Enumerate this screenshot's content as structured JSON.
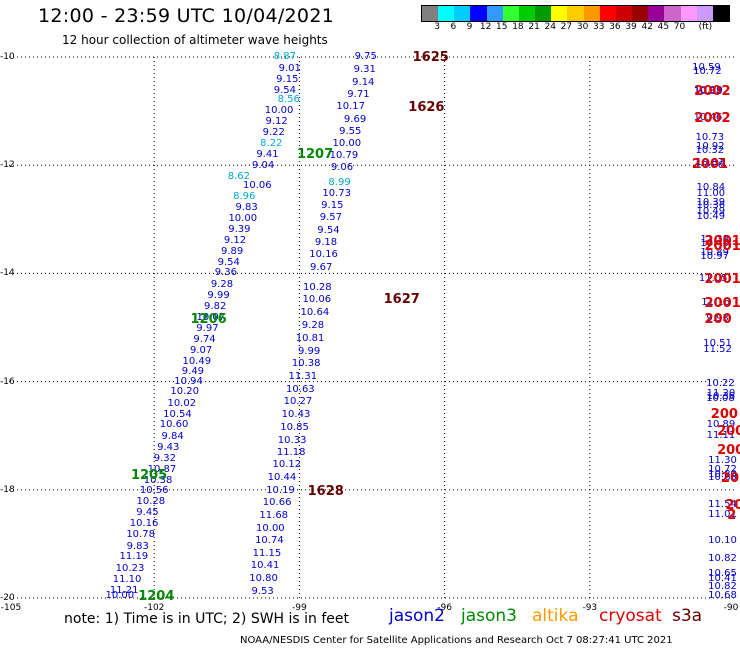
{
  "title": "12:00 - 23:59 UTC 10/04/2021",
  "subtitle": "12 hour collection of altimeter wave heights",
  "colorbar": {
    "colors": [
      "#808080",
      "#00ffff",
      "#00ccff",
      "#0000ff",
      "#3399ff",
      "#33ff33",
      "#00cc00",
      "#009900",
      "#ffff00",
      "#ffcc00",
      "#ff9900",
      "#ff0000",
      "#cc0000",
      "#990000",
      "#990099",
      "#cc66cc",
      "#ff99ff",
      "#cc99ff",
      "#000000"
    ],
    "labels": [
      "3",
      "6",
      "9",
      "12",
      "15",
      "18",
      "21",
      "24",
      "27",
      "30",
      "33",
      "36",
      "39",
      "42",
      "45",
      "70",
      "(ft)"
    ]
  },
  "axes": {
    "lon_ticks": [
      "-105",
      "-102",
      "-99",
      "-96",
      "-93",
      "-90"
    ],
    "lat_ticks": [
      "-10",
      "-12",
      "-14",
      "-16",
      "-18",
      "-20"
    ]
  },
  "note": "note: 1) Time is in UTC; 2) SWH is in feet",
  "satellites": [
    {
      "name": "jason2",
      "color": "#0000cc"
    },
    {
      "name": "jason3",
      "color": "#008800"
    },
    {
      "name": "altika",
      "color": "#ff9900"
    },
    {
      "name": "cryosat",
      "color": "#dd0000"
    },
    {
      "name": "s3a",
      "color": "#660000"
    }
  ],
  "credit": "NOAA/NESDIS Center for Satellite Applications and Research   Oct  7 08:27:41 UTC 2021",
  "pass_labels": [
    {
      "text": "1625",
      "color": "#660000",
      "lon": -96.66,
      "lat": -10.0
    },
    {
      "text": "1626",
      "color": "#660000",
      "lon": -96.75,
      "lat": -10.93
    },
    {
      "text": "1627",
      "color": "#660000",
      "lon": -97.26,
      "lat": -14.48
    },
    {
      "text": "1628",
      "color": "#660000",
      "lon": -98.83,
      "lat": -18.02
    },
    {
      "text": "1207",
      "color": "#008800",
      "lon": -99.05,
      "lat": -11.79
    },
    {
      "text": "1206",
      "color": "#008800",
      "lon": -101.25,
      "lat": -14.84
    },
    {
      "text": "1205",
      "color": "#008800",
      "lon": -102.48,
      "lat": -17.73
    },
    {
      "text": "1204",
      "color": "#008800",
      "lon": -102.33,
      "lat": -19.96
    },
    {
      "text": "2002",
      "color": "#dd0000",
      "lon": -90.84,
      "lat": -10.63
    },
    {
      "text": "2002",
      "color": "#dd0000",
      "lon": -90.84,
      "lat": -11.13
    },
    {
      "text": "2001",
      "color": "#dd0000",
      "lon": -90.89,
      "lat": -11.98
    },
    {
      "text": "2001",
      "color": "#dd0000",
      "lon": -90.63,
      "lat": -13.4
    },
    {
      "text": "2001",
      "color": "#dd0000",
      "lon": -90.63,
      "lat": -13.49
    },
    {
      "text": "2001",
      "color": "#dd0000",
      "lon": -90.63,
      "lat": -14.11
    },
    {
      "text": "2001",
      "color": "#dd0000",
      "lon": -90.63,
      "lat": -14.55
    },
    {
      "text": "200",
      "color": "#dd0000",
      "lon": -90.63,
      "lat": -14.84
    },
    {
      "text": "200",
      "color": "#dd0000",
      "lon": -90.5,
      "lat": -16.6
    },
    {
      "text": "200",
      "color": "#dd0000",
      "lon": -90.37,
      "lat": -16.91
    },
    {
      "text": "200",
      "color": "#dd0000",
      "lon": -90.37,
      "lat": -17.26
    },
    {
      "text": "20",
      "color": "#dd0000",
      "lon": -90.29,
      "lat": -17.78
    },
    {
      "text": "20",
      "color": "#dd0000",
      "lon": -90.2,
      "lat": -18.29
    },
    {
      "text": "2",
      "color": "#dd0000",
      "lon": -90.16,
      "lat": -18.47
    }
  ],
  "tracks": [
    {
      "color": "#0000cc",
      "points": [
        {
          "v": "9.75",
          "lon": -97.63,
          "lat": -10.0
        },
        {
          "v": "9.31",
          "lon": -97.65,
          "lat": -10.24
        },
        {
          "v": "9.14",
          "lon": -97.68,
          "lat": -10.48
        },
        {
          "v": "9.71",
          "lon": -97.78,
          "lat": -10.71
        },
        {
          "v": "10.17",
          "lon": -97.94,
          "lat": -10.93
        },
        {
          "v": "9.69",
          "lon": -97.85,
          "lat": -11.17
        },
        {
          "v": "9.55",
          "lon": -97.95,
          "lat": -11.39
        },
        {
          "v": "10.00",
          "lon": -98.02,
          "lat": -11.61
        },
        {
          "v": "10.79",
          "lon": -98.08,
          "lat": -11.83
        },
        {
          "v": "9.06",
          "lon": -98.12,
          "lat": -12.06
        },
        {
          "v": "10.73",
          "lon": -98.23,
          "lat": -12.53
        },
        {
          "v": "9.15",
          "lon": -98.32,
          "lat": -12.76
        },
        {
          "v": "9.57",
          "lon": -98.35,
          "lat": -12.98
        },
        {
          "v": "9.54",
          "lon": -98.4,
          "lat": -13.21
        },
        {
          "v": "9.18",
          "lon": -98.45,
          "lat": -13.43
        },
        {
          "v": "10.16",
          "lon": -98.5,
          "lat": -13.66
        },
        {
          "v": "9.67",
          "lon": -98.55,
          "lat": -13.9
        },
        {
          "v": "10.28",
          "lon": -98.63,
          "lat": -14.27
        },
        {
          "v": "10.06",
          "lon": -98.64,
          "lat": -14.49
        },
        {
          "v": "10.64",
          "lon": -98.68,
          "lat": -14.74
        },
        {
          "v": "9.28",
          "lon": -98.72,
          "lat": -14.97
        },
        {
          "v": "10.81",
          "lon": -98.78,
          "lat": -15.21
        },
        {
          "v": "9.99",
          "lon": -98.8,
          "lat": -15.46
        },
        {
          "v": "10.38",
          "lon": -98.86,
          "lat": -15.68
        },
        {
          "v": "11.31",
          "lon": -98.93,
          "lat": -15.92
        },
        {
          "v": "10.63",
          "lon": -98.98,
          "lat": -16.15
        },
        {
          "v": "10.27",
          "lon": -99.03,
          "lat": -16.38
        },
        {
          "v": "10.43",
          "lon": -99.07,
          "lat": -16.62
        },
        {
          "v": "10.85",
          "lon": -99.1,
          "lat": -16.85
        },
        {
          "v": "10.33",
          "lon": -99.15,
          "lat": -17.09
        },
        {
          "v": "11.18",
          "lon": -99.17,
          "lat": -17.32
        },
        {
          "v": "10.12",
          "lon": -99.26,
          "lat": -17.55
        },
        {
          "v": "10.44",
          "lon": -99.36,
          "lat": -17.79
        },
        {
          "v": "10.19",
          "lon": -99.39,
          "lat": -18.02
        },
        {
          "v": "10.66",
          "lon": -99.46,
          "lat": -18.25
        },
        {
          "v": "11.68",
          "lon": -99.53,
          "lat": -18.48
        },
        {
          "v": "10.00",
          "lon": -99.6,
          "lat": -18.72
        },
        {
          "v": "10.74",
          "lon": -99.62,
          "lat": -18.95
        },
        {
          "v": "11.15",
          "lon": -99.67,
          "lat": -19.18
        },
        {
          "v": "10.41",
          "lon": -99.71,
          "lat": -19.41
        },
        {
          "v": "10.80",
          "lon": -99.74,
          "lat": -19.64
        },
        {
          "v": "9.53",
          "lon": -99.76,
          "lat": -19.89
        }
      ]
    },
    {
      "color": "#00aacc",
      "points": [
        {
          "v": "8.87",
          "lon": -99.3,
          "lat": -10.0
        },
        {
          "v": "8.56",
          "lon": -99.22,
          "lat": -10.8
        },
        {
          "v": "8.22",
          "lon": -99.58,
          "lat": -11.61
        },
        {
          "v": "8.62",
          "lon": -100.25,
          "lat": -12.21
        },
        {
          "v": "8.96",
          "lon": -100.14,
          "lat": -12.59
        },
        {
          "v": "8.99",
          "lon": -98.17,
          "lat": -12.33
        }
      ]
    },
    {
      "color": "#0000cc",
      "points": [
        {
          "v": "9.01",
          "lon": -99.2,
          "lat": -10.22
        },
        {
          "v": "9.15",
          "lon": -99.25,
          "lat": -10.43
        },
        {
          "v": "9.54",
          "lon": -99.3,
          "lat": -10.63
        },
        {
          "v": "10.00",
          "lon": -99.42,
          "lat": -11.0
        },
        {
          "v": "9.12",
          "lon": -99.47,
          "lat": -11.2
        },
        {
          "v": "9.22",
          "lon": -99.53,
          "lat": -11.4
        },
        {
          "v": "9.41",
          "lon": -99.66,
          "lat": -11.81
        },
        {
          "v": "9.04",
          "lon": -99.75,
          "lat": -12.01
        },
        {
          "v": "10.06",
          "lon": -99.87,
          "lat": -12.39
        },
        {
          "v": "9.83",
          "lon": -100.09,
          "lat": -12.79
        },
        {
          "v": "10.00",
          "lon": -100.17,
          "lat": -12.99
        },
        {
          "v": "9.39",
          "lon": -100.24,
          "lat": -13.19
        },
        {
          "v": "9.12",
          "lon": -100.33,
          "lat": -13.4
        },
        {
          "v": "9.89",
          "lon": -100.39,
          "lat": -13.6
        },
        {
          "v": "9.54",
          "lon": -100.46,
          "lat": -13.81
        },
        {
          "v": "9.36",
          "lon": -100.52,
          "lat": -14.0
        },
        {
          "v": "9.28",
          "lon": -100.6,
          "lat": -14.21
        },
        {
          "v": "9.99",
          "lon": -100.67,
          "lat": -14.41
        },
        {
          "v": "9.82",
          "lon": -100.74,
          "lat": -14.62
        },
        {
          "v": "10.07",
          "lon": -100.83,
          "lat": -14.82
        },
        {
          "v": "9.97",
          "lon": -100.9,
          "lat": -15.03
        },
        {
          "v": "9.74",
          "lon": -100.96,
          "lat": -15.23
        },
        {
          "v": "9.07",
          "lon": -101.03,
          "lat": -15.43
        },
        {
          "v": "10.49",
          "lon": -101.12,
          "lat": -15.64
        },
        {
          "v": "9.49",
          "lon": -101.2,
          "lat": -15.83
        },
        {
          "v": "10.94",
          "lon": -101.29,
          "lat": -16.0
        },
        {
          "v": "10.20",
          "lon": -101.37,
          "lat": -16.2
        },
        {
          "v": "10.02",
          "lon": -101.43,
          "lat": -16.41
        },
        {
          "v": "10.54",
          "lon": -101.52,
          "lat": -16.61
        },
        {
          "v": "10.60",
          "lon": -101.59,
          "lat": -16.81
        },
        {
          "v": "9.84",
          "lon": -101.62,
          "lat": -17.02
        },
        {
          "v": "9.43",
          "lon": -101.71,
          "lat": -17.23
        },
        {
          "v": "9.32",
          "lon": -101.78,
          "lat": -17.43
        },
        {
          "v": "10.87",
          "lon": -101.84,
          "lat": -17.63
        },
        {
          "v": "10.38",
          "lon": -101.92,
          "lat": -17.84
        },
        {
          "v": "10.56",
          "lon": -102.0,
          "lat": -18.03
        },
        {
          "v": "10.28",
          "lon": -102.07,
          "lat": -18.22
        },
        {
          "v": "9.45",
          "lon": -102.14,
          "lat": -18.43
        },
        {
          "v": "10.16",
          "lon": -102.21,
          "lat": -18.64
        },
        {
          "v": "10.78",
          "lon": -102.28,
          "lat": -18.84
        },
        {
          "v": "9.83",
          "lon": -102.34,
          "lat": -19.05
        },
        {
          "v": "11.19",
          "lon": -102.42,
          "lat": -19.25
        },
        {
          "v": "10.23",
          "lon": -102.5,
          "lat": -19.46
        },
        {
          "v": "11.10",
          "lon": -102.56,
          "lat": -19.66
        },
        {
          "v": "11.21",
          "lon": -102.62,
          "lat": -19.87
        },
        {
          "v": "10.00",
          "lon": -102.71,
          "lat": -19.96
        }
      ]
    },
    {
      "color": "#0000cc",
      "points": [
        {
          "v": "10.59",
          "lon": -90.59,
          "lat": -10.2
        },
        {
          "v": "10.72",
          "lon": -90.57,
          "lat": -10.27
        },
        {
          "v": "10.88",
          "lon": -90.56,
          "lat": -10.65
        },
        {
          "v": "10.99",
          "lon": -90.55,
          "lat": -10.62
        },
        {
          "v": "10.46",
          "lon": -90.56,
          "lat": -11.13
        },
        {
          "v": "10.73",
          "lon": -90.52,
          "lat": -11.5
        },
        {
          "v": "10.92",
          "lon": -90.51,
          "lat": -11.66
        },
        {
          "v": "10.32",
          "lon": -90.52,
          "lat": -11.74
        },
        {
          "v": "10.87",
          "lon": -90.52,
          "lat": -11.96
        },
        {
          "v": "10.96",
          "lon": -90.52,
          "lat": -12.01
        },
        {
          "v": "10.84",
          "lon": -90.5,
          "lat": -12.42
        },
        {
          "v": "11.00",
          "lon": -90.5,
          "lat": -12.54
        },
        {
          "v": "10.39",
          "lon": -90.5,
          "lat": -12.7
        },
        {
          "v": "10.36",
          "lon": -90.5,
          "lat": -12.76
        },
        {
          "v": "10.49",
          "lon": -90.5,
          "lat": -12.87
        },
        {
          "v": "10.49",
          "lon": -90.5,
          "lat": -12.95
        },
        {
          "v": "11.38",
          "lon": -90.42,
          "lat": -13.38
        },
        {
          "v": "10.40",
          "lon": -90.42,
          "lat": -13.45
        },
        {
          "v": "10.89",
          "lon": -90.42,
          "lat": -13.62
        },
        {
          "v": "10.97",
          "lon": -90.42,
          "lat": -13.7
        },
        {
          "v": "11.05",
          "lon": -90.45,
          "lat": -14.11
        },
        {
          "v": "11.16",
          "lon": -90.4,
          "lat": -14.55
        },
        {
          "v": "9.93",
          "lon": -90.36,
          "lat": -14.84
        },
        {
          "v": "10.51",
          "lon": -90.36,
          "lat": -15.31
        },
        {
          "v": "11.52",
          "lon": -90.36,
          "lat": -15.41
        },
        {
          "v": "10.22",
          "lon": -90.3,
          "lat": -16.05
        },
        {
          "v": "11.20",
          "lon": -90.29,
          "lat": -16.23
        },
        {
          "v": "10.38",
          "lon": -90.29,
          "lat": -16.28
        },
        {
          "v": "10.08",
          "lon": -90.3,
          "lat": -16.33
        },
        {
          "v": "10.89",
          "lon": -90.29,
          "lat": -16.8
        },
        {
          "v": "11.11",
          "lon": -90.29,
          "lat": -17.0
        },
        {
          "v": "11.30",
          "lon": -90.12,
          "lat": -17.47
        },
        {
          "v": "10.72",
          "lon": -90.12,
          "lat": -17.64
        },
        {
          "v": "10.80",
          "lon": -90.12,
          "lat": -17.73
        },
        {
          "v": "10.65",
          "lon": -90.17,
          "lat": -17.79
        },
        {
          "v": "11.54",
          "lon": -90.09,
          "lat": -18.29
        },
        {
          "v": "11.01",
          "lon": -90.1,
          "lat": -18.47
        },
        {
          "v": "10.10",
          "lon": -90.05,
          "lat": -18.95
        },
        {
          "v": "10.82",
          "lon": -90.0,
          "lat": -19.28
        },
        {
          "v": "10.65",
          "lon": -90.0,
          "lat": -19.55
        },
        {
          "v": "10.41",
          "lon": -90.0,
          "lat": -19.64
        },
        {
          "v": "10.82",
          "lon": -90.0,
          "lat": -19.79
        },
        {
          "v": "10.68",
          "lon": -90.0,
          "lat": -19.96
        }
      ]
    }
  ]
}
